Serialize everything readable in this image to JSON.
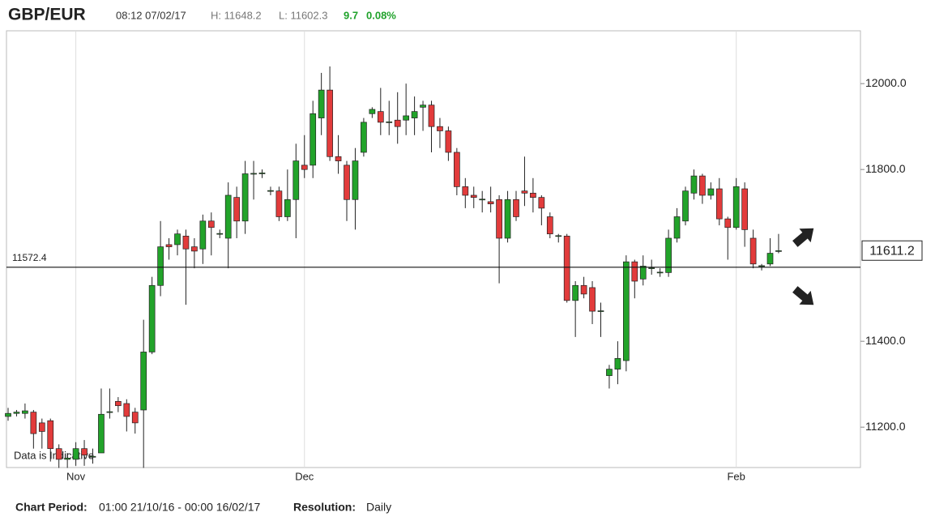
{
  "chart_data": {
    "type": "candlestick",
    "title": "GBP/EUR",
    "header": {
      "time": "08:12 07/02/17",
      "high": "H: 11648.2",
      "low": "L: 11602.3",
      "change": 9.7,
      "change_pct": "0.08%"
    },
    "categories": [
      null,
      null,
      null,
      null,
      null,
      null,
      null,
      null,
      "Nov",
      null,
      null,
      null,
      null,
      null,
      null,
      null,
      null,
      null,
      null,
      null,
      null,
      null,
      null,
      null,
      null,
      null,
      null,
      null,
      null,
      null,
      null,
      null,
      null,
      null,
      null,
      "Dec",
      null,
      null,
      null,
      null,
      null,
      null,
      null,
      null,
      null,
      null,
      null,
      null,
      null,
      null,
      null,
      null,
      null,
      null,
      null,
      null,
      null,
      null,
      null,
      null,
      null,
      null,
      null,
      null,
      null,
      null,
      null,
      null,
      null,
      null,
      null,
      null,
      null,
      null,
      null,
      null,
      null,
      null,
      null,
      null,
      null,
      null,
      null,
      null,
      null,
      null,
      "Feb",
      null,
      null,
      null,
      null,
      null
    ],
    "open": [
      11225,
      11232,
      11232,
      11235,
      11210,
      11215,
      11150,
      11125,
      11125,
      11150,
      11130,
      11140,
      11235,
      11260,
      11255,
      11235,
      11240,
      11375,
      11530,
      11625,
      11625,
      11645,
      11620,
      11615,
      11680,
      11650,
      11640,
      11735,
      11680,
      11790,
      11790,
      11750,
      11750,
      11690,
      11730,
      11810,
      11810,
      11920,
      11985,
      11830,
      11810,
      11730,
      11840,
      11930,
      11935,
      11910,
      11915,
      11915,
      11920,
      11945,
      11950,
      11900,
      11890,
      11840,
      11760,
      11740,
      11730,
      11725,
      11730,
      11640,
      11730,
      11750,
      11745,
      11735,
      11690,
      11645,
      11645,
      11495,
      11530,
      11525,
      11470,
      11320,
      11335,
      11355,
      11585,
      11545,
      11570,
      11560,
      11560,
      11640,
      11680,
      11745,
      11785,
      11740,
      11755,
      11685,
      11665,
      11755,
      11640,
      11575,
      11580,
      11610
    ],
    "high": [
      11245,
      11240,
      11255,
      11240,
      11220,
      11220,
      11160,
      11140,
      11165,
      11170,
      11150,
      11290,
      11290,
      11270,
      11265,
      11245,
      11450,
      11550,
      11680,
      11640,
      11660,
      11660,
      11640,
      11695,
      11700,
      11660,
      11770,
      11760,
      11820,
      11820,
      11800,
      11760,
      11760,
      11800,
      11860,
      11880,
      11960,
      12025,
      12040,
      11880,
      11820,
      11850,
      11920,
      11945,
      11990,
      11960,
      11980,
      12000,
      11970,
      11960,
      11960,
      11920,
      11900,
      11850,
      11780,
      11760,
      11750,
      11760,
      11740,
      11750,
      11750,
      11830,
      11780,
      11740,
      11700,
      11650,
      11650,
      11540,
      11550,
      11540,
      11490,
      11345,
      11400,
      11600,
      11590,
      11600,
      11590,
      11570,
      11660,
      11710,
      11760,
      11800,
      11790,
      11770,
      11780,
      11690,
      11780,
      11770,
      11660,
      11580,
      11640,
      11650
    ],
    "low": [
      11215,
      11225,
      11220,
      11150,
      11150,
      11120,
      11105,
      11105,
      11110,
      11110,
      11115,
      11150,
      11220,
      11235,
      11190,
      11185,
      11105,
      11370,
      11505,
      11590,
      11600,
      11485,
      11570,
      11580,
      11600,
      11640,
      11570,
      11640,
      11650,
      11730,
      11780,
      11740,
      11680,
      11680,
      11640,
      11780,
      11780,
      11880,
      11820,
      11790,
      11680,
      11660,
      11830,
      11920,
      11880,
      11880,
      11860,
      11880,
      11880,
      11890,
      11840,
      11850,
      11820,
      11740,
      11710,
      11710,
      11700,
      11700,
      11535,
      11630,
      11680,
      11715,
      11700,
      11670,
      11640,
      11630,
      11490,
      11410,
      11500,
      11440,
      11410,
      11290,
      11300,
      11330,
      11500,
      11530,
      11555,
      11550,
      11550,
      11630,
      11670,
      11730,
      11720,
      11730,
      11670,
      11590,
      11660,
      11620,
      11570,
      11565,
      11575,
      11605
    ],
    "close": [
      11232,
      11235,
      11238,
      11185,
      11190,
      11150,
      11125,
      11128,
      11150,
      11135,
      11132,
      11230,
      11236,
      11250,
      11225,
      11210,
      11375,
      11530,
      11620,
      11620,
      11650,
      11615,
      11610,
      11680,
      11665,
      11651,
      11740,
      11680,
      11790,
      11791,
      11792,
      11751,
      11690,
      11730,
      11820,
      11800,
      11930,
      11985,
      11830,
      11820,
      11730,
      11820,
      11910,
      11940,
      11910,
      11911,
      11900,
      11925,
      11935,
      11950,
      11900,
      11890,
      11840,
      11760,
      11740,
      11735,
      11731,
      11720,
      11640,
      11730,
      11690,
      11745,
      11735,
      11710,
      11650,
      11646,
      11495,
      11530,
      11510,
      11470,
      11471,
      11335,
      11360,
      11585,
      11540,
      11575,
      11571,
      11561,
      11640,
      11690,
      11750,
      11785,
      11740,
      11755,
      11685,
      11665,
      11760,
      11660,
      11580,
      11576,
      11605,
      11611
    ],
    "up_color": "#22a32a",
    "down_color": "#e23b3b",
    "ylim": [
      11106,
      12123
    ],
    "yticks": [
      {
        "value": 11200,
        "label": "11200.0"
      },
      {
        "value": 11400,
        "label": "11400.0"
      },
      {
        "value": 11800,
        "label": "11800.0"
      },
      {
        "value": 12000,
        "label": "12000.0"
      }
    ],
    "reference_line": 11572.4,
    "last_price": 11611.2,
    "watermark": "Data is Indicative",
    "footer": {
      "period_label": "Chart Period:",
      "period": "01:00 21/10/16 - 00:00 16/02/17",
      "resolution_label": "Resolution:",
      "resolution": "Daily"
    }
  }
}
